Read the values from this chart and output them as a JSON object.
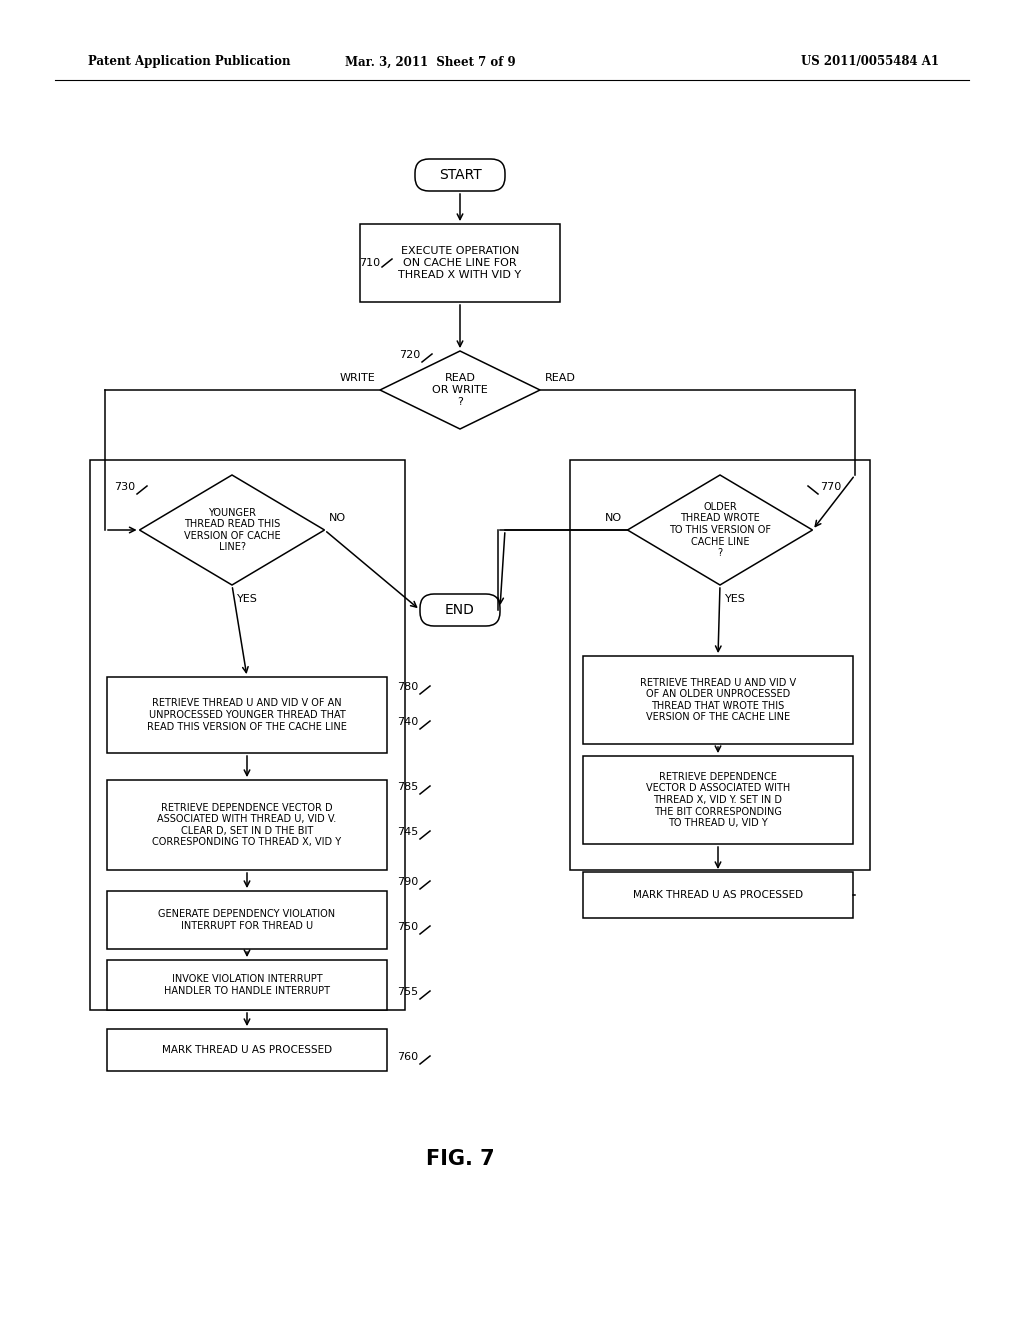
{
  "bg_color": "#ffffff",
  "header_left": "Patent Application Publication",
  "header_mid": "Mar. 3, 2011  Sheet 7 of 9",
  "header_right": "US 2011/0055484 A1",
  "fig_label": "FIG. 7",
  "lw": 1.1
}
